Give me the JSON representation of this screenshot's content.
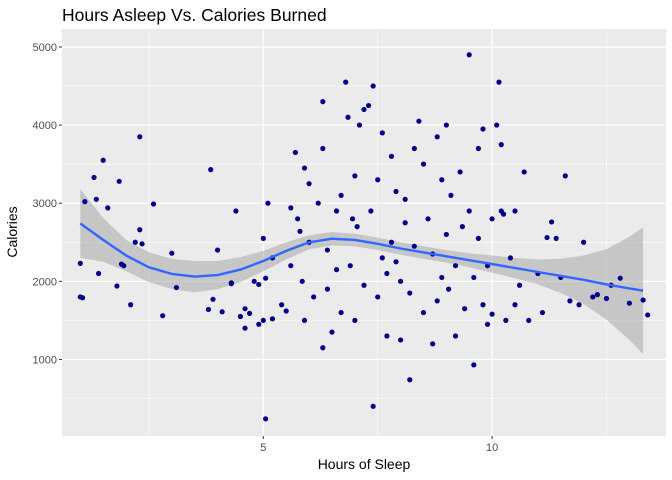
{
  "chart_data": {
    "type": "scatter",
    "title": "Hours Asleep Vs. Calories Burned",
    "xlabel": "Hours of Sleep",
    "ylabel": "Calories",
    "xlim": [
      0.6,
      13.8
    ],
    "ylim": [
      20,
      5230
    ],
    "x_ticks": [
      5,
      10
    ],
    "x_tick_labels": [
      "5",
      "10"
    ],
    "y_ticks": [
      1000,
      2000,
      3000,
      4000,
      5000
    ],
    "y_tick_labels": [
      "1000",
      "2000",
      "3000",
      "4000",
      "5000"
    ],
    "grid": true,
    "legend": "none",
    "colors": {
      "panel": "#ebebeb",
      "grid_major": "#ffffff",
      "points": "#00008b",
      "smooth_line": "#3366ff",
      "ribbon": "#999999"
    },
    "smooth": {
      "x": [
        1.0,
        1.5,
        2.0,
        2.5,
        3.0,
        3.5,
        4.0,
        4.5,
        5.0,
        5.5,
        6.0,
        6.5,
        7.0,
        7.5,
        8.0,
        8.5,
        9.0,
        9.5,
        10.0,
        10.5,
        11.0,
        11.5,
        12.0,
        12.5,
        13.0,
        13.3
      ],
      "y": [
        2740,
        2530,
        2330,
        2180,
        2095,
        2060,
        2080,
        2150,
        2260,
        2390,
        2500,
        2545,
        2530,
        2480,
        2420,
        2370,
        2320,
        2270,
        2220,
        2170,
        2120,
        2070,
        2020,
        1960,
        1910,
        1880
      ],
      "lower": [
        2300,
        2250,
        2130,
        1990,
        1900,
        1860,
        1900,
        1990,
        2130,
        2280,
        2410,
        2460,
        2450,
        2400,
        2340,
        2290,
        2240,
        2180,
        2110,
        2040,
        1960,
        1850,
        1710,
        1510,
        1250,
        1070
      ],
      "upper": [
        3180,
        2810,
        2530,
        2370,
        2290,
        2260,
        2260,
        2310,
        2390,
        2500,
        2590,
        2630,
        2610,
        2560,
        2500,
        2450,
        2400,
        2360,
        2330,
        2300,
        2280,
        2290,
        2330,
        2410,
        2570,
        2690
      ]
    },
    "points": [
      [
        1.0,
        2230
      ],
      [
        1.0,
        1800
      ],
      [
        1.05,
        1790
      ],
      [
        1.1,
        3020
      ],
      [
        1.3,
        3330
      ],
      [
        1.35,
        3050
      ],
      [
        1.4,
        2100
      ],
      [
        1.5,
        3550
      ],
      [
        1.6,
        2940
      ],
      [
        1.8,
        1940
      ],
      [
        1.85,
        3280
      ],
      [
        1.9,
        2220
      ],
      [
        1.95,
        2200
      ],
      [
        2.1,
        1700
      ],
      [
        2.2,
        2500
      ],
      [
        2.3,
        3850
      ],
      [
        2.3,
        2660
      ],
      [
        2.35,
        2480
      ],
      [
        2.6,
        2990
      ],
      [
        2.8,
        1560
      ],
      [
        3.0,
        2360
      ],
      [
        3.1,
        1920
      ],
      [
        3.8,
        1640
      ],
      [
        3.85,
        3430
      ],
      [
        3.9,
        1770
      ],
      [
        4.0,
        2400
      ],
      [
        4.1,
        1610
      ],
      [
        4.3,
        1980
      ],
      [
        4.3,
        1970
      ],
      [
        4.4,
        2900
      ],
      [
        4.5,
        1550
      ],
      [
        4.6,
        1400
      ],
      [
        4.6,
        1650
      ],
      [
        4.7,
        1590
      ],
      [
        4.8,
        2000
      ],
      [
        4.9,
        1450
      ],
      [
        4.9,
        1960
      ],
      [
        5.0,
        1500
      ],
      [
        5.0,
        2550
      ],
      [
        5.05,
        2040
      ],
      [
        5.05,
        240
      ],
      [
        5.1,
        3000
      ],
      [
        5.2,
        1520
      ],
      [
        5.2,
        2300
      ],
      [
        5.4,
        1700
      ],
      [
        5.5,
        1620
      ],
      [
        5.6,
        2940
      ],
      [
        5.7,
        3650
      ],
      [
        5.8,
        2640
      ],
      [
        5.6,
        2200
      ],
      [
        5.75,
        2800
      ],
      [
        5.85,
        2000
      ],
      [
        5.9,
        1500
      ],
      [
        5.9,
        3450
      ],
      [
        6.0,
        3250
      ],
      [
        6.0,
        2500
      ],
      [
        6.1,
        1800
      ],
      [
        6.2,
        3000
      ],
      [
        6.3,
        1150
      ],
      [
        6.3,
        3700
      ],
      [
        6.3,
        4300
      ],
      [
        6.4,
        1900
      ],
      [
        6.4,
        2400
      ],
      [
        6.5,
        1350
      ],
      [
        6.6,
        2900
      ],
      [
        6.6,
        2150
      ],
      [
        6.7,
        1600
      ],
      [
        6.7,
        3100
      ],
      [
        6.8,
        4550
      ],
      [
        6.85,
        4100
      ],
      [
        6.9,
        2200
      ],
      [
        6.95,
        2800
      ],
      [
        7.0,
        3350
      ],
      [
        7.05,
        2700
      ],
      [
        7.0,
        1500
      ],
      [
        7.1,
        4000
      ],
      [
        7.2,
        4200
      ],
      [
        7.2,
        1950
      ],
      [
        7.3,
        4250
      ],
      [
        7.35,
        2900
      ],
      [
        7.4,
        400
      ],
      [
        7.4,
        4500
      ],
      [
        7.5,
        3300
      ],
      [
        7.5,
        1800
      ],
      [
        7.6,
        2300
      ],
      [
        7.6,
        3900
      ],
      [
        7.7,
        2100
      ],
      [
        7.7,
        1300
      ],
      [
        7.8,
        3600
      ],
      [
        7.8,
        2500
      ],
      [
        7.9,
        3150
      ],
      [
        7.9,
        2250
      ],
      [
        8.0,
        2000
      ],
      [
        8.0,
        1250
      ],
      [
        8.1,
        3050
      ],
      [
        8.1,
        2750
      ],
      [
        8.2,
        740
      ],
      [
        8.2,
        1850
      ],
      [
        8.3,
        3700
      ],
      [
        8.3,
        2450
      ],
      [
        8.4,
        4050
      ],
      [
        8.5,
        3500
      ],
      [
        8.5,
        1600
      ],
      [
        8.6,
        2800
      ],
      [
        8.7,
        1200
      ],
      [
        8.7,
        2350
      ],
      [
        8.8,
        3850
      ],
      [
        8.8,
        1750
      ],
      [
        8.9,
        3300
      ],
      [
        8.9,
        2050
      ],
      [
        9.0,
        2600
      ],
      [
        9.0,
        4000
      ],
      [
        9.05,
        1900
      ],
      [
        9.1,
        3100
      ],
      [
        9.2,
        2200
      ],
      [
        9.2,
        1300
      ],
      [
        9.3,
        3400
      ],
      [
        9.35,
        2700
      ],
      [
        9.4,
        1650
      ],
      [
        9.5,
        2900
      ],
      [
        9.5,
        4900
      ],
      [
        9.6,
        2050
      ],
      [
        9.6,
        930
      ],
      [
        9.7,
        3700
      ],
      [
        9.7,
        2550
      ],
      [
        9.8,
        1700
      ],
      [
        9.8,
        3950
      ],
      [
        9.9,
        2200
      ],
      [
        9.9,
        1450
      ],
      [
        10.0,
        2800
      ],
      [
        10.0,
        1580
      ],
      [
        10.1,
        4000
      ],
      [
        10.15,
        4550
      ],
      [
        10.2,
        2900
      ],
      [
        10.2,
        3750
      ],
      [
        10.25,
        2860
      ],
      [
        10.3,
        1500
      ],
      [
        10.4,
        2300
      ],
      [
        10.5,
        1700
      ],
      [
        10.5,
        2900
      ],
      [
        10.6,
        1950
      ],
      [
        10.7,
        3400
      ],
      [
        10.8,
        1500
      ],
      [
        11.0,
        2100
      ],
      [
        11.1,
        1600
      ],
      [
        11.2,
        2560
      ],
      [
        11.3,
        2760
      ],
      [
        11.4,
        2550
      ],
      [
        11.5,
        2050
      ],
      [
        11.6,
        3350
      ],
      [
        11.7,
        1750
      ],
      [
        11.9,
        1700
      ],
      [
        12.0,
        2500
      ],
      [
        12.2,
        1800
      ],
      [
        12.3,
        1830
      ],
      [
        12.5,
        1780
      ],
      [
        12.6,
        1950
      ],
      [
        12.8,
        2040
      ],
      [
        13.0,
        1720
      ],
      [
        13.3,
        1760
      ],
      [
        13.4,
        1570
      ]
    ]
  }
}
